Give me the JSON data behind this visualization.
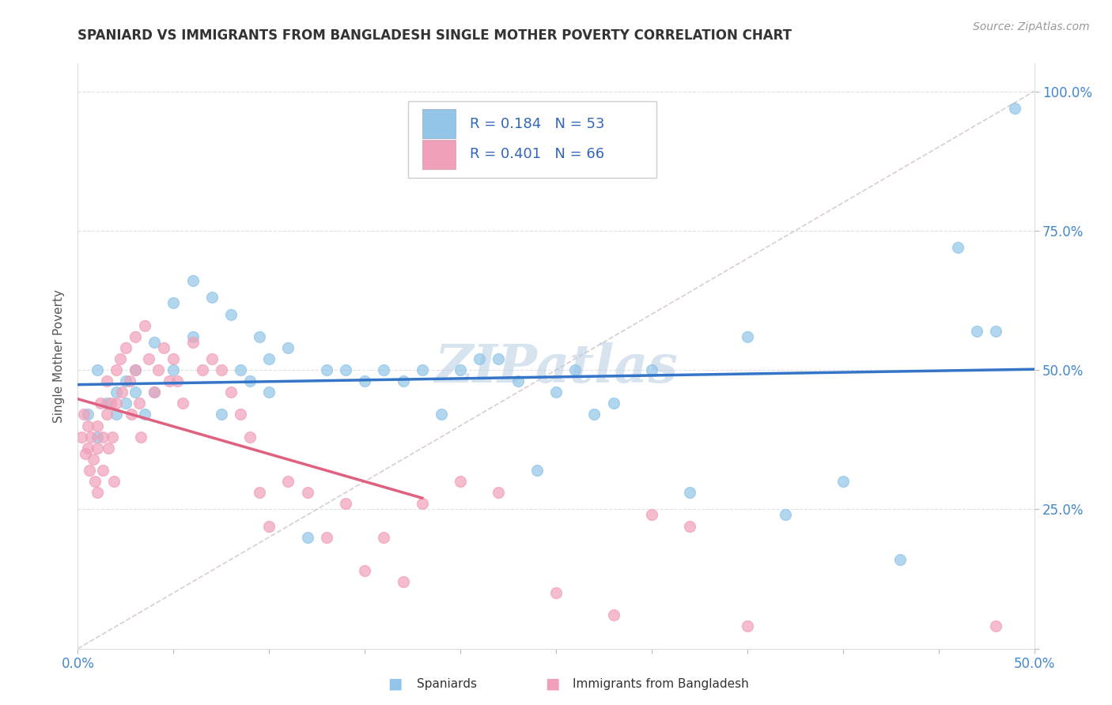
{
  "title": "SPANIARD VS IMMIGRANTS FROM BANGLADESH SINGLE MOTHER POVERTY CORRELATION CHART",
  "source": "Source: ZipAtlas.com",
  "ylabel": "Single Mother Poverty",
  "xlim": [
    0.0,
    0.5
  ],
  "ylim": [
    0.0,
    1.05
  ],
  "xtick_positions": [
    0.0,
    0.05,
    0.1,
    0.15,
    0.2,
    0.25,
    0.3,
    0.35,
    0.4,
    0.45,
    0.5
  ],
  "ytick_positions": [
    0.0,
    0.25,
    0.5,
    0.75,
    1.0
  ],
  "ytick_labels": [
    "",
    "25.0%",
    "50.0%",
    "75.0%",
    "100.0%"
  ],
  "blue_color": "#92C5E8",
  "pink_color": "#F0A0B8",
  "blue_line_color": "#3575C8",
  "pink_line_color": "#E06080",
  "diag_color": "#D0C0C8",
  "watermark": "ZIPatlas",
  "spaniards_x": [
    0.005,
    0.01,
    0.01,
    0.015,
    0.02,
    0.02,
    0.025,
    0.025,
    0.03,
    0.03,
    0.035,
    0.04,
    0.04,
    0.05,
    0.05,
    0.06,
    0.06,
    0.07,
    0.075,
    0.08,
    0.085,
    0.09,
    0.095,
    0.1,
    0.1,
    0.11,
    0.12,
    0.13,
    0.14,
    0.15,
    0.16,
    0.17,
    0.18,
    0.19,
    0.2,
    0.21,
    0.22,
    0.23,
    0.24,
    0.25,
    0.26,
    0.27,
    0.28,
    0.3,
    0.32,
    0.35,
    0.37,
    0.4,
    0.43,
    0.46,
    0.47,
    0.48,
    0.49
  ],
  "spaniards_y": [
    0.42,
    0.5,
    0.38,
    0.44,
    0.46,
    0.42,
    0.48,
    0.44,
    0.5,
    0.46,
    0.42,
    0.55,
    0.46,
    0.62,
    0.5,
    0.66,
    0.56,
    0.63,
    0.42,
    0.6,
    0.5,
    0.48,
    0.56,
    0.52,
    0.46,
    0.54,
    0.2,
    0.5,
    0.5,
    0.48,
    0.5,
    0.48,
    0.5,
    0.42,
    0.5,
    0.52,
    0.52,
    0.48,
    0.32,
    0.46,
    0.5,
    0.42,
    0.44,
    0.5,
    0.28,
    0.56,
    0.24,
    0.3,
    0.16,
    0.72,
    0.57,
    0.57,
    0.97
  ],
  "bangladesh_x": [
    0.002,
    0.003,
    0.004,
    0.005,
    0.005,
    0.006,
    0.007,
    0.008,
    0.009,
    0.01,
    0.01,
    0.01,
    0.012,
    0.013,
    0.013,
    0.015,
    0.015,
    0.016,
    0.017,
    0.018,
    0.019,
    0.02,
    0.02,
    0.022,
    0.023,
    0.025,
    0.027,
    0.028,
    0.03,
    0.03,
    0.032,
    0.033,
    0.035,
    0.037,
    0.04,
    0.042,
    0.045,
    0.048,
    0.05,
    0.052,
    0.055,
    0.06,
    0.065,
    0.07,
    0.075,
    0.08,
    0.085,
    0.09,
    0.095,
    0.1,
    0.11,
    0.12,
    0.13,
    0.14,
    0.15,
    0.16,
    0.17,
    0.18,
    0.2,
    0.22,
    0.25,
    0.28,
    0.3,
    0.32,
    0.35,
    0.48
  ],
  "bangladesh_y": [
    0.38,
    0.42,
    0.35,
    0.4,
    0.36,
    0.32,
    0.38,
    0.34,
    0.3,
    0.4,
    0.36,
    0.28,
    0.44,
    0.38,
    0.32,
    0.48,
    0.42,
    0.36,
    0.44,
    0.38,
    0.3,
    0.5,
    0.44,
    0.52,
    0.46,
    0.54,
    0.48,
    0.42,
    0.56,
    0.5,
    0.44,
    0.38,
    0.58,
    0.52,
    0.46,
    0.5,
    0.54,
    0.48,
    0.52,
    0.48,
    0.44,
    0.55,
    0.5,
    0.52,
    0.5,
    0.46,
    0.42,
    0.38,
    0.28,
    0.22,
    0.3,
    0.28,
    0.2,
    0.26,
    0.14,
    0.2,
    0.12,
    0.26,
    0.3,
    0.28,
    0.1,
    0.06,
    0.24,
    0.22,
    0.04,
    0.04
  ]
}
